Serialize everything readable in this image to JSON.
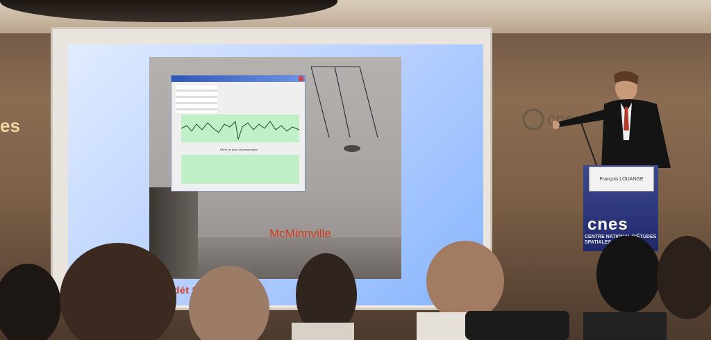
{
  "scene": {
    "wall_logo_text": "es",
    "slide": {
      "caption": "McMinnville",
      "bottom_text": "dét                           fil de         sion",
      "window_label": "Filtrer au point de présentation"
    },
    "nameplate": "François LOUANGE",
    "podium_logo": "cnes",
    "podium_subtext": "CENTRE NATIONAL\nD'ÉTUDES SPATIALES",
    "wall_logo_right": "cnes"
  },
  "colors": {
    "slide_text_red": "#d13a1c",
    "podium_blue": "#2a3480",
    "wall_logo_gold": "#f0d9a0"
  },
  "icons": [
    "cnes-logo",
    "camera-icon"
  ]
}
